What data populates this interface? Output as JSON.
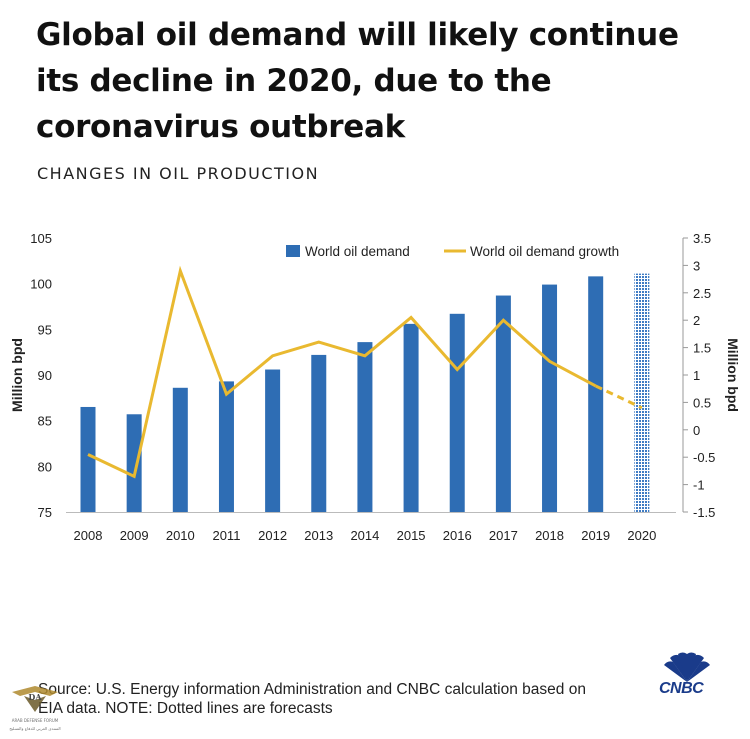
{
  "header": {
    "title": "Global oil demand will likely continue its decline in 2020, due to the coronavirus outbreak",
    "subtitle": "CHANGES IN OIL PRODUCTION"
  },
  "chart_data": {
    "type": "bar",
    "categories": [
      "2008",
      "2009",
      "2010",
      "2011",
      "2012",
      "2013",
      "2014",
      "2015",
      "2016",
      "2017",
      "2018",
      "2019",
      "2020"
    ],
    "series": [
      {
        "name": "World oil demand",
        "type": "bar",
        "axis": "left",
        "color": "#2e6db4",
        "forecast_color": "#7aa3d6",
        "values": [
          86.5,
          85.7,
          88.6,
          89.3,
          90.6,
          92.2,
          93.6,
          95.6,
          96.7,
          98.7,
          99.9,
          100.8,
          101.1
        ],
        "forecast_from_index": 12
      },
      {
        "name": "World oil demand growth",
        "type": "line",
        "axis": "right",
        "color": "#e9b930",
        "values": [
          -0.45,
          -0.85,
          2.9,
          0.65,
          1.35,
          1.6,
          1.35,
          2.05,
          1.1,
          2.0,
          1.25,
          0.8,
          0.4
        ],
        "forecast_from_index": 11
      }
    ],
    "left_axis": {
      "label": "Million bpd",
      "min": 75,
      "max": 105,
      "ticks": [
        75,
        80,
        85,
        90,
        95,
        100,
        105
      ]
    },
    "right_axis": {
      "label": "Million bpd",
      "min": -1.5,
      "max": 3.5,
      "ticks": [
        -1.5,
        -1,
        -0.5,
        0,
        0.5,
        1,
        1.5,
        2,
        2.5,
        3,
        3.5
      ]
    },
    "legend": [
      "World oil demand",
      "World oil demand growth"
    ],
    "legend_position": "top-right"
  },
  "footer": {
    "source_line1": "Source: U.S. Energy information Administration and CNBC calculation based on",
    "source_line2": "EIA data. NOTE: Dotted lines are forecasts",
    "logo_text": "CNBC"
  },
  "watermark": {
    "mark": "DA",
    "line1": "ARAB DEFENSE FORUM",
    "line2": "المنتدى العربي للدفاع والتسليح"
  },
  "colors": {
    "bar": "#2e6db4",
    "line": "#e9b930",
    "axis": "#888888",
    "text": "#222222",
    "cnbc_blue": "#1a3b8a"
  }
}
